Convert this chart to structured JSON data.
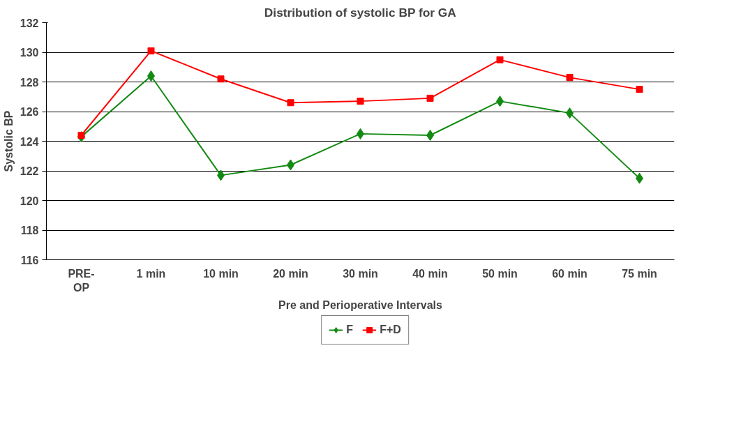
{
  "chart_data": {
    "type": "line",
    "title": "Distribution of systolic BP for GA",
    "xlabel": "Pre and Perioperative Intervals",
    "ylabel": "Systolic BP",
    "categories": [
      "PRE-OP",
      "1 min",
      "10 min",
      "20 min",
      "30 min",
      "40 min",
      "50 min",
      "60 min",
      "75 min"
    ],
    "series": [
      {
        "name": "F",
        "color": "#138a13",
        "marker": "diamond",
        "values": [
          124.3,
          128.4,
          121.7,
          122.4,
          124.5,
          124.4,
          126.7,
          125.9,
          121.5
        ]
      },
      {
        "name": "F+D",
        "color": "#ff0000",
        "marker": "square",
        "values": [
          124.4,
          130.1,
          128.2,
          126.6,
          126.7,
          126.9,
          129.5,
          128.3,
          127.5
        ]
      }
    ],
    "ylim": [
      116,
      132
    ],
    "yticks": [
      116,
      118,
      120,
      122,
      124,
      126,
      128,
      130,
      132
    ],
    "grid": "y",
    "legend": "bottom",
    "line_style": "solid"
  }
}
